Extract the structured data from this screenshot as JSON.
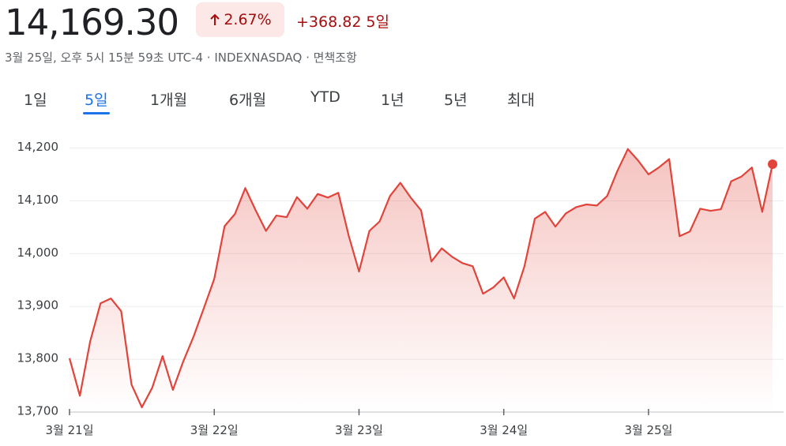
{
  "header": {
    "price": "14,169.30",
    "change_percent": "2.67%",
    "change": "+368.82",
    "period": "5일",
    "subtitle": "3월 25일, 오후 5시 15분 59초 UTC-4 · INDEXNASDAQ · 면책조항"
  },
  "tabs": {
    "items": [
      "1일",
      "5일",
      "1개월",
      "6개월",
      "YTD",
      "1년",
      "5년",
      "최대"
    ],
    "selected": 1
  },
  "chart_data": {
    "type": "line",
    "color": "#e0443a",
    "categories": [
      "3월 21일",
      null,
      null,
      null,
      null,
      null,
      null,
      null,
      null,
      null,
      null,
      null,
      null,
      null,
      "3월 22일",
      null,
      null,
      null,
      null,
      null,
      null,
      null,
      null,
      null,
      null,
      null,
      null,
      null,
      "3월 23일",
      null,
      null,
      null,
      null,
      null,
      null,
      null,
      null,
      null,
      null,
      null,
      null,
      null,
      "3월 24일",
      null,
      null,
      null,
      null,
      null,
      null,
      null,
      null,
      null,
      null,
      null,
      null,
      null,
      "3월 25일",
      null,
      null,
      null,
      null,
      null,
      null,
      null,
      null,
      null,
      null,
      null,
      null
    ],
    "values": [
      13802,
      13731,
      13834,
      13906,
      13915,
      13891,
      13752,
      13709,
      13746,
      13806,
      13742,
      13796,
      13843,
      13897,
      13952,
      14052,
      14075,
      14124,
      14082,
      14043,
      14072,
      14069,
      14107,
      14085,
      14113,
      14106,
      14115,
      14034,
      13966,
      14043,
      14061,
      14109,
      14134,
      14106,
      14082,
      13985,
      14010,
      13994,
      13982,
      13976,
      13924,
      13936,
      13955,
      13915,
      13976,
      14066,
      14079,
      14051,
      14076,
      14088,
      14093,
      14091,
      14109,
      14157,
      14198,
      14176,
      14150,
      14163,
      14179,
      14033,
      14042,
      14085,
      14081,
      14084,
      14137,
      14146,
      14163,
      14079,
      14169.3
    ],
    "ylim": [
      13700,
      14250
    ],
    "yticks": [
      {
        "value": 13700,
        "label": "13,700"
      },
      {
        "value": 13800,
        "label": "13,800"
      },
      {
        "value": 13900,
        "label": "13,900"
      },
      {
        "value": 14000,
        "label": "14,000"
      },
      {
        "value": 14100,
        "label": "14,100"
      },
      {
        "value": 14200,
        "label": "14,200"
      }
    ],
    "grid": true
  }
}
